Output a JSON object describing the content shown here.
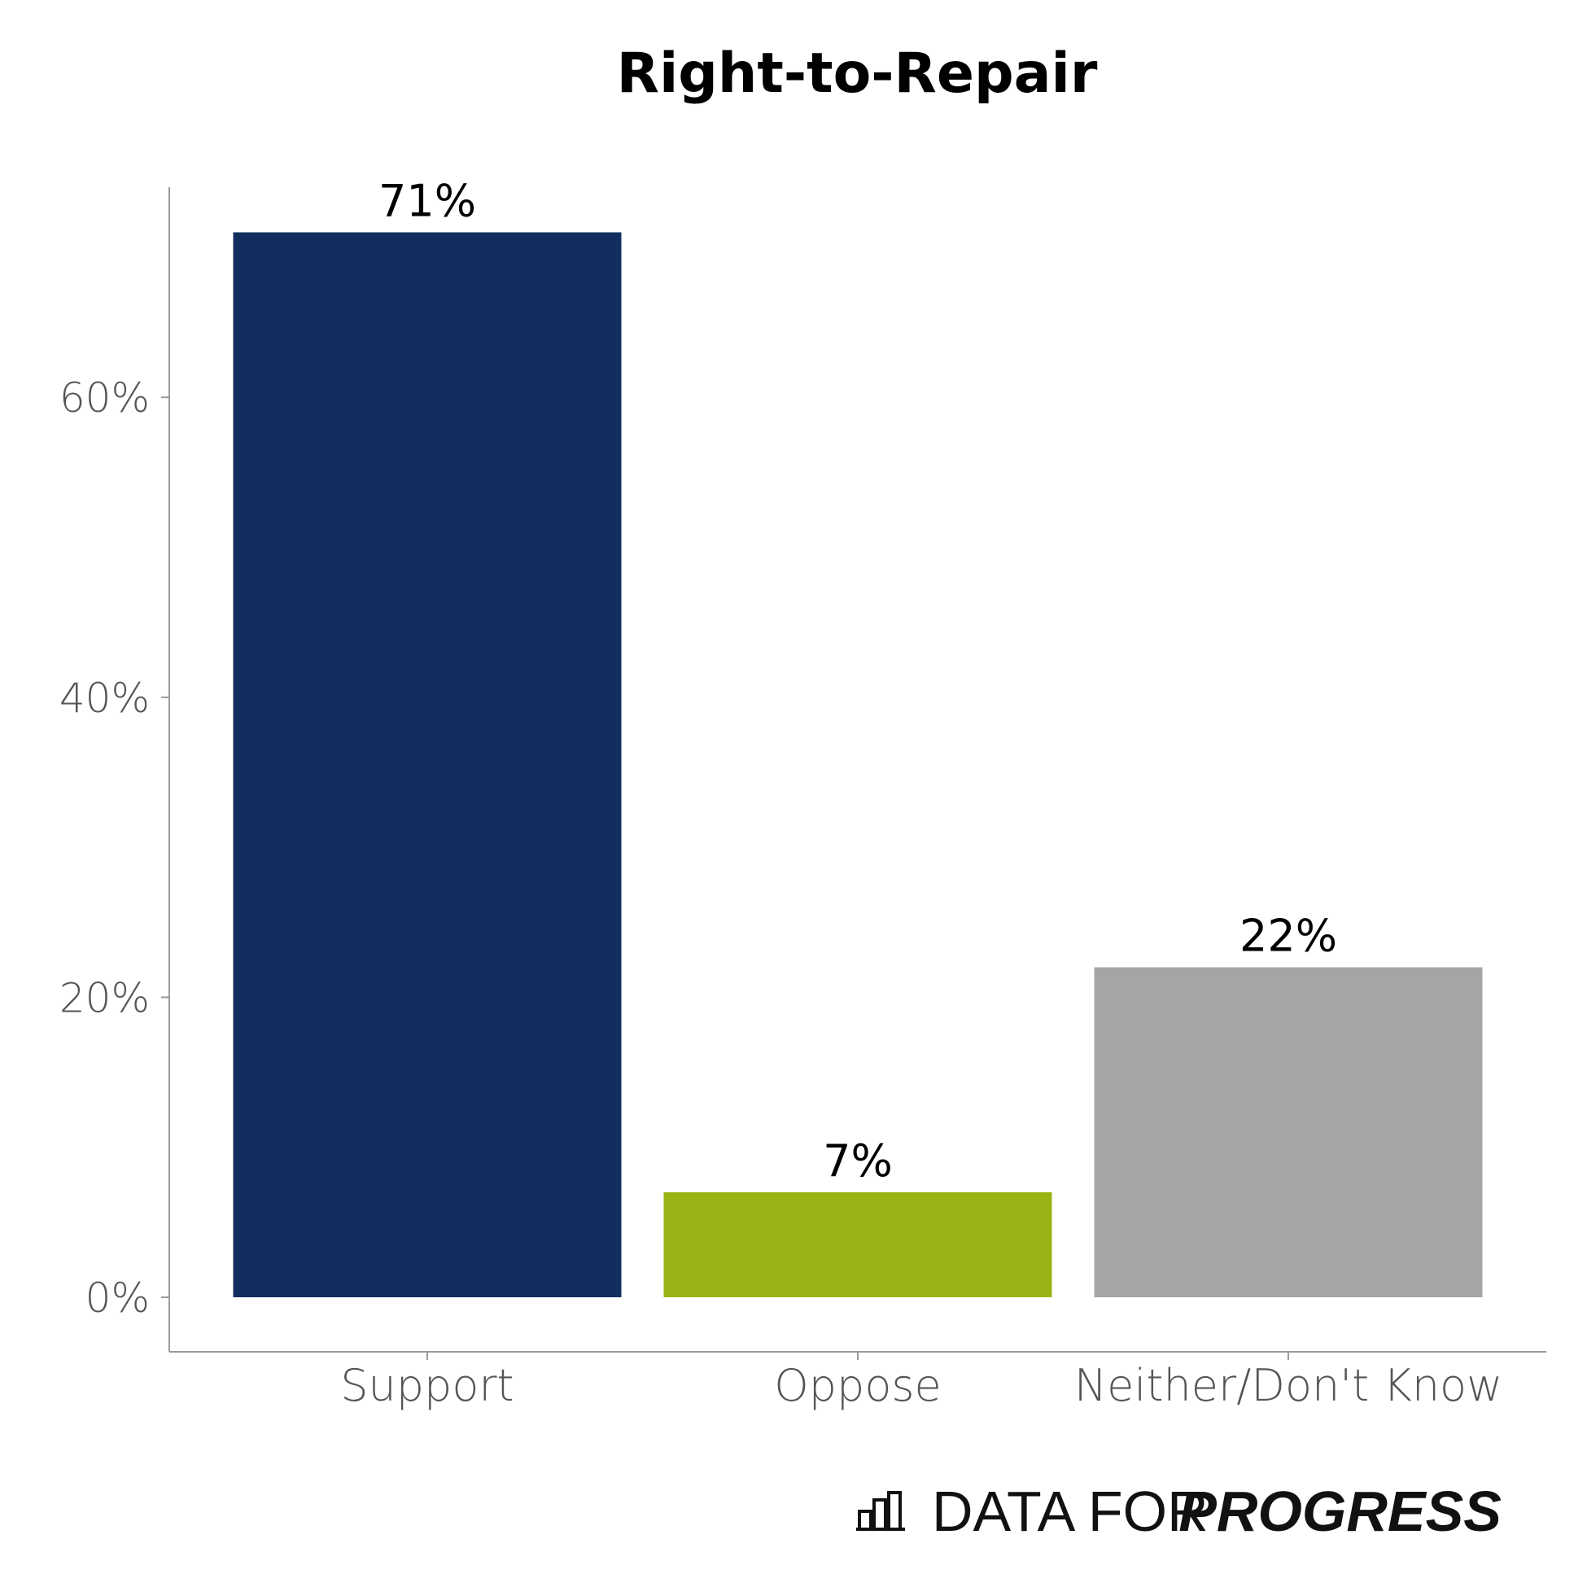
{
  "chart_data": {
    "type": "bar",
    "title": "Right-to-Repair",
    "categories": [
      "Support",
      "Oppose",
      "Neither/Don't Know"
    ],
    "values": [
      71,
      7,
      22
    ],
    "data_labels": [
      "71%",
      "7%",
      "22%"
    ],
    "colors": [
      "#122e5e",
      "#98b414",
      "#a5a5a5"
    ],
    "xlabel": "",
    "ylabel": "",
    "ylim": [
      0,
      71
    ],
    "yticks": [
      0,
      20,
      40,
      60
    ],
    "ytick_labels": [
      "0%",
      "20%",
      "40%",
      "60%"
    ],
    "grid": false,
    "legend": "none"
  },
  "branding": {
    "logo_text_light": "DATA FOR",
    "logo_text_bold": "PROGRESS",
    "logo_icon": "bar-chart-icon"
  }
}
